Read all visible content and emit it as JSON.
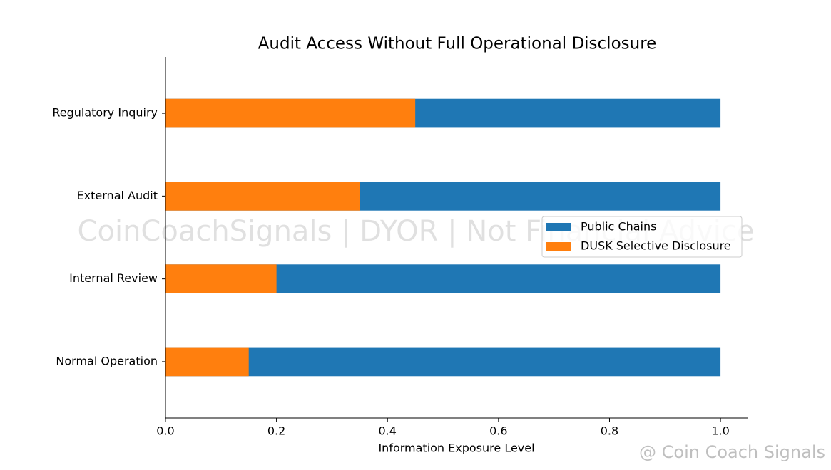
{
  "chart_data": {
    "type": "bar",
    "horizontal": true,
    "title": "Audit Access Without Full Operational Disclosure",
    "xlabel": "Information Exposure Level",
    "categories": [
      "Normal Operation",
      "Internal Review",
      "External Audit",
      "Regulatory Inquiry"
    ],
    "series": [
      {
        "name": "Public Chains",
        "color": "#1f77b4",
        "values": [
          1.0,
          1.0,
          1.0,
          1.0
        ]
      },
      {
        "name": "DUSK Selective Disclosure",
        "color": "#ff7f0e",
        "values": [
          0.15,
          0.2,
          0.35,
          0.45
        ]
      }
    ],
    "xlim": [
      0,
      1.05
    ],
    "xticks": [
      {
        "value": 0,
        "label": "0.0"
      },
      0.2,
      0.4,
      0.6,
      0.8,
      {
        "value": 1,
        "label": "1.0"
      }
    ],
    "legend": "center right",
    "watermark": "CoinCoachSignals | DYOR | Not Financial Advice",
    "credit": "@ Coin Coach Signals"
  }
}
